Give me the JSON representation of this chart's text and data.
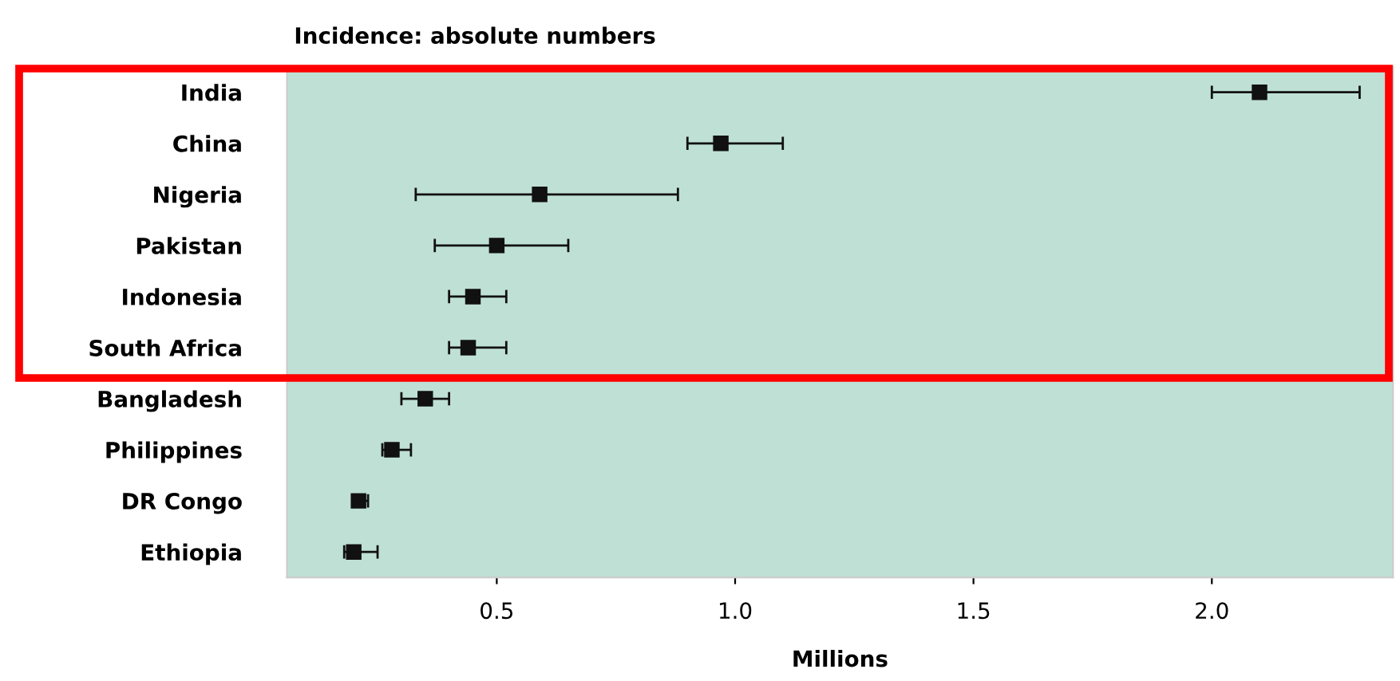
{
  "chart_data": {
    "type": "scatter",
    "orientation": "horizontal",
    "title": "Incidence: absolute numbers",
    "xlabel": "Millions",
    "categories": [
      "India",
      "China",
      "Nigeria",
      "Pakistan",
      "Indonesia",
      "South Africa",
      "Bangladesh",
      "Philippines",
      "DR Congo",
      "Ethiopia"
    ],
    "color": "#111111",
    "values": [
      2.1,
      0.97,
      0.59,
      0.5,
      0.45,
      0.44,
      0.35,
      0.28,
      0.21,
      0.2
    ],
    "errors": [
      [
        2.0,
        2.31
      ],
      [
        0.9,
        1.1
      ],
      [
        0.33,
        0.88
      ],
      [
        0.37,
        0.65
      ],
      [
        0.4,
        0.52
      ],
      [
        0.4,
        0.52
      ],
      [
        0.3,
        0.4
      ],
      [
        0.26,
        0.32
      ],
      [
        0.2,
        0.23
      ],
      [
        0.18,
        0.25
      ]
    ],
    "xlim": [
      0.06,
      2.38
    ],
    "xticks": [
      {
        "value": 0.5,
        "label": "0.5"
      },
      {
        "value": 1.0,
        "label": "1.0"
      },
      {
        "value": 1.5,
        "label": "1.5"
      },
      {
        "value": 2.0,
        "label": "2.0"
      }
    ],
    "marker": "square",
    "grid": false,
    "legend": false
  }
}
